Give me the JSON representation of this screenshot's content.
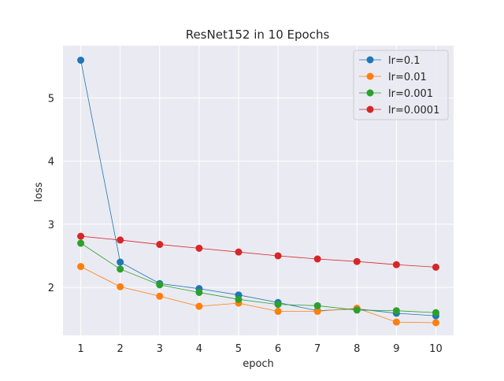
{
  "colors": {
    "plot_bg": "#eaeaf2",
    "grid": "#ffffff",
    "text": "#262626"
  },
  "chart_data": {
    "type": "line",
    "title": "ResNet152 in 10 Epochs",
    "xlabel": "epoch",
    "ylabel": "loss",
    "x": [
      1,
      2,
      3,
      4,
      5,
      6,
      7,
      8,
      9,
      10
    ],
    "x_ticks": [
      1,
      2,
      3,
      4,
      5,
      6,
      7,
      8,
      9,
      10
    ],
    "y_ticks": [
      2,
      3,
      4,
      5
    ],
    "xlim": [
      0.55,
      10.45
    ],
    "ylim": [
      1.24,
      5.83
    ],
    "grid": true,
    "legend_position": "top-right",
    "series": [
      {
        "name": "lr=0.1",
        "color": "#1f77b4",
        "values": [
          5.6,
          2.4,
          2.06,
          1.98,
          1.88,
          1.76,
          1.63,
          1.66,
          1.59,
          1.55
        ]
      },
      {
        "name": "lr=0.01",
        "color": "#ff7f0e",
        "values": [
          2.33,
          2.01,
          1.86,
          1.7,
          1.75,
          1.62,
          1.62,
          1.67,
          1.45,
          1.44
        ]
      },
      {
        "name": "lr=0.001",
        "color": "#2ca02c",
        "values": [
          2.7,
          2.29,
          2.04,
          1.92,
          1.81,
          1.73,
          1.71,
          1.64,
          1.63,
          1.6
        ]
      },
      {
        "name": "lr=0.0001",
        "color": "#d62728",
        "values": [
          2.81,
          2.75,
          2.68,
          2.62,
          2.56,
          2.5,
          2.45,
          2.41,
          2.36,
          2.32
        ]
      }
    ]
  }
}
